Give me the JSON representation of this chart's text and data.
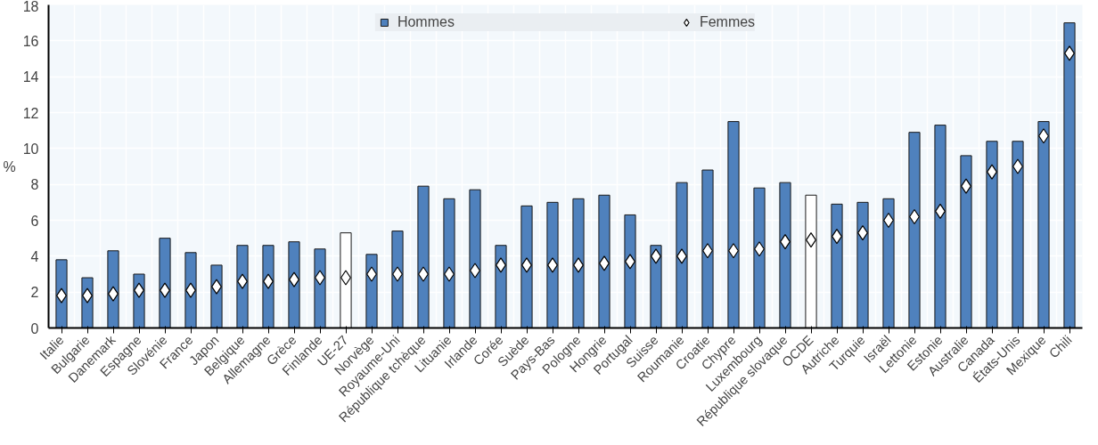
{
  "chart_data": {
    "type": "bar",
    "ylabel": "%",
    "categories": [
      "Italie",
      "Bulgarie",
      "Danemark",
      "Espagne",
      "Slovénie",
      "France",
      "Japon",
      "Belgique",
      "Allemagne",
      "Grèce",
      "Finlande",
      "UE-27",
      "Norvège",
      "Royaume-Uni",
      "République tchèque",
      "Lituanie",
      "Irlande",
      "Corée",
      "Suède",
      "Pays-Bas",
      "Pologne",
      "Hongrie",
      "Portugal",
      "Suisse",
      "Roumanie",
      "Croatie",
      "Chypre",
      "Luxembourg",
      "République slovaque",
      "OCDE",
      "Autriche",
      "Turquie",
      "Israël",
      "Lettonie",
      "Estonie",
      "Australie",
      "Canada",
      "États-Unis",
      "Mexique",
      "Chili"
    ],
    "series": [
      {
        "name": "Hommes",
        "color": "#4f81bd",
        "colors": [
          "#4f81bd",
          "#4f81bd",
          "#4f81bd",
          "#4f81bd",
          "#4f81bd",
          "#4f81bd",
          "#4f81bd",
          "#4f81bd",
          "#4f81bd",
          "#4f81bd",
          "#4f81bd",
          "#ffffff",
          "#4f81bd",
          "#4f81bd",
          "#4f81bd",
          "#4f81bd",
          "#4f81bd",
          "#4f81bd",
          "#4f81bd",
          "#4f81bd",
          "#4f81bd",
          "#4f81bd",
          "#4f81bd",
          "#4f81bd",
          "#4f81bd",
          "#4f81bd",
          "#4f81bd",
          "#4f81bd",
          "#4f81bd",
          "#ffffff",
          "#4f81bd",
          "#4f81bd",
          "#4f81bd",
          "#4f81bd",
          "#4f81bd",
          "#4f81bd",
          "#4f81bd",
          "#4f81bd",
          "#4f81bd",
          "#4f81bd"
        ],
        "values": [
          3.8,
          2.8,
          4.3,
          3.0,
          5.0,
          4.2,
          3.5,
          4.6,
          4.6,
          4.8,
          4.4,
          5.3,
          4.1,
          5.4,
          7.9,
          7.2,
          7.7,
          4.6,
          6.8,
          7.0,
          7.2,
          7.4,
          6.3,
          4.6,
          8.1,
          8.8,
          11.5,
          7.8,
          8.1,
          7.4,
          6.9,
          7.0,
          7.2,
          10.9,
          11.3,
          9.6,
          10.4,
          10.4,
          11.5,
          17.0
        ]
      },
      {
        "name": "Femmes",
        "type": "scatter",
        "marker": "diamond",
        "color": "#ffffff",
        "x": [
          "Italie",
          "Bulgarie",
          "Danemark",
          "Espagne",
          "Slovénie",
          "France",
          "Japon",
          "Belgique",
          "Allemagne",
          "Grèce",
          "Finlande",
          "UE-27",
          "Norvège",
          "Royaume-Uni",
          "République tchèque",
          "Lituanie",
          "Irlande",
          "Corée",
          "Suède",
          "Pays-Bas",
          "Pologne",
          "Hongrie",
          "Portugal",
          "Suisse",
          "Roumanie",
          "Croatie",
          "Chypre",
          "Luxembourg",
          "République slovaque",
          "OCDE",
          "Autriche",
          "Turquie",
          "Israël",
          "Lettonie",
          "Estonie",
          "Australie",
          "Canada",
          "États-Unis",
          "Mexique",
          "Chili"
        ],
        "values": [
          1.8,
          1.8,
          1.9,
          2.1,
          2.1,
          2.1,
          2.3,
          2.6,
          2.6,
          2.7,
          2.8,
          2.8,
          3.0,
          3.0,
          3.0,
          3.0,
          3.2,
          3.5,
          3.5,
          3.5,
          3.5,
          3.6,
          3.7,
          4.0,
          4.0,
          4.3,
          4.3,
          4.4,
          4.8,
          4.9,
          5.1,
          5.3,
          6.0,
          6.2,
          6.5,
          7.9,
          8.7,
          9.0,
          10.7,
          15.3
        ]
      }
    ],
    "ylim": [
      0,
      18
    ],
    "yticks": [
      0,
      2,
      4,
      6,
      8,
      10,
      12,
      14,
      16,
      18
    ],
    "grid": true,
    "legend": "top"
  }
}
